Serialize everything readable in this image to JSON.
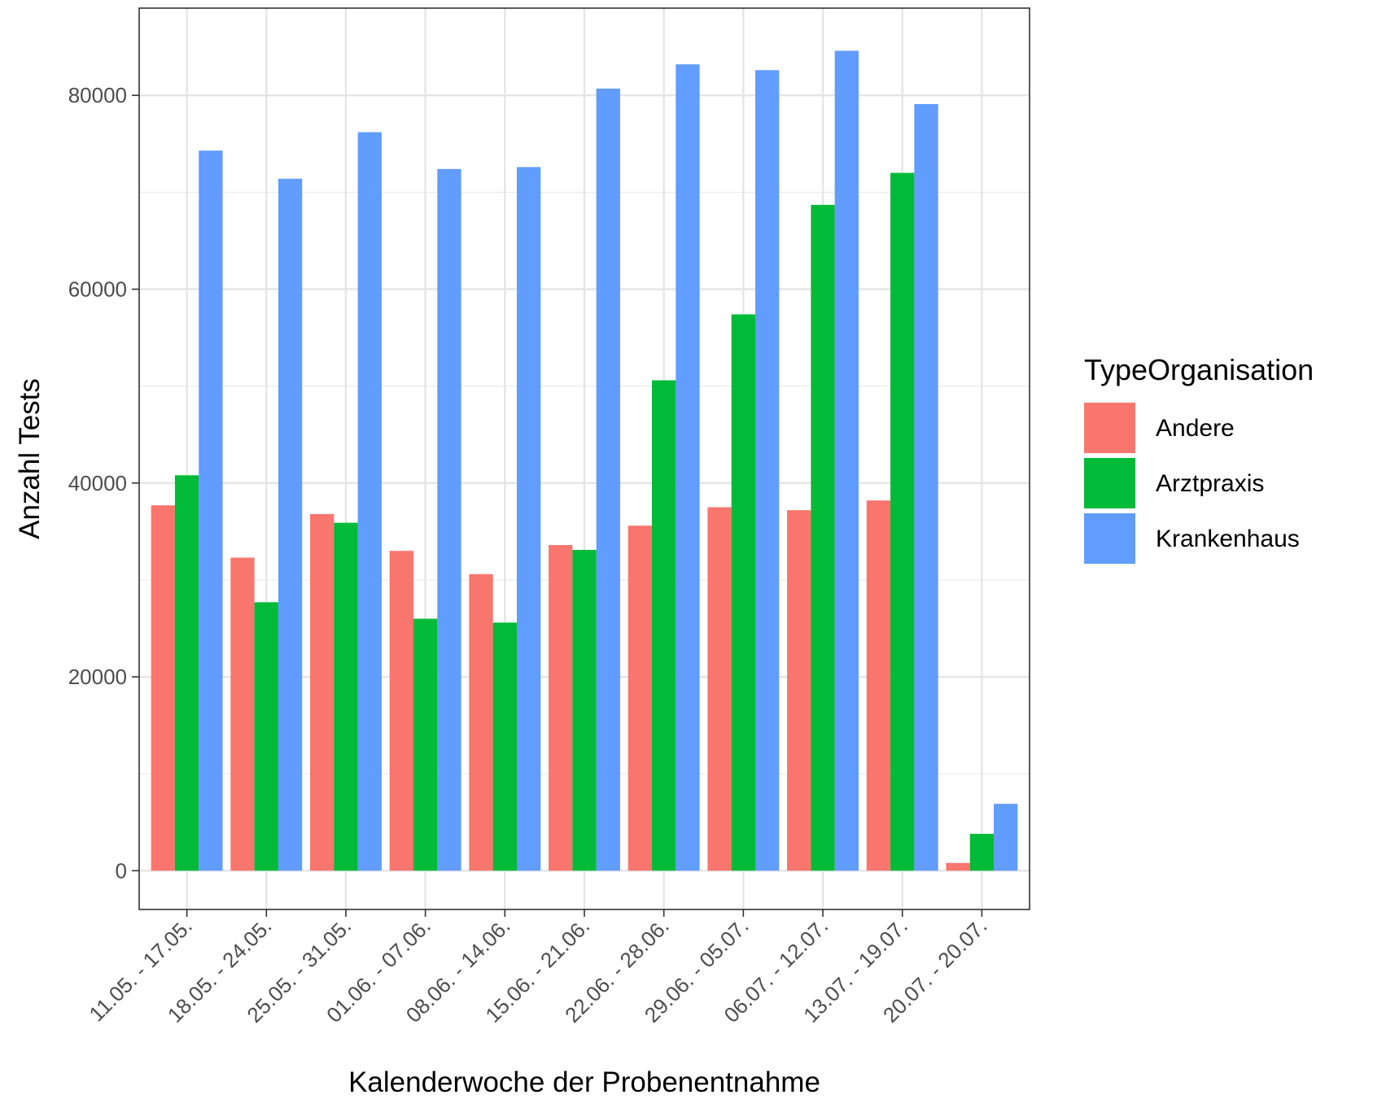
{
  "chart_data": {
    "type": "bar",
    "xlabel": "Kalenderwoche der Probenentnahme",
    "ylabel": "Anzahl Tests",
    "ylim": [
      -4000,
      89000
    ],
    "yticks": [
      0,
      20000,
      40000,
      60000,
      80000
    ],
    "ytick_labels": [
      "0",
      "20000",
      "40000",
      "60000",
      "80000"
    ],
    "grid": true,
    "legend_position": "right",
    "legend_title": "TypeOrganisation",
    "categories": [
      "11.05. - 17.05.",
      "18.05. - 24.05.",
      "25.05. - 31.05.",
      "01.06. - 07.06.",
      "08.06. - 14.06.",
      "15.06. - 21.06.",
      "22.06. - 28.06.",
      "29.06. - 05.07.",
      "06.07. - 12.07.",
      "13.07. - 19.07.",
      "20.07. - 20.07."
    ],
    "series": [
      {
        "name": "Andere",
        "color": "#F8766D",
        "values": [
          37700,
          32300,
          36800,
          33000,
          30600,
          33600,
          35600,
          37500,
          37200,
          38200,
          800
        ]
      },
      {
        "name": "Arztpraxis",
        "color": "#00BA38",
        "values": [
          40800,
          27700,
          35900,
          26000,
          25600,
          33100,
          50600,
          57400,
          68700,
          72000,
          3800
        ]
      },
      {
        "name": "Krankenhaus",
        "color": "#619CFF",
        "values": [
          74300,
          71400,
          76200,
          72400,
          72600,
          80700,
          83200,
          82600,
          84600,
          79100,
          6900
        ]
      }
    ]
  }
}
